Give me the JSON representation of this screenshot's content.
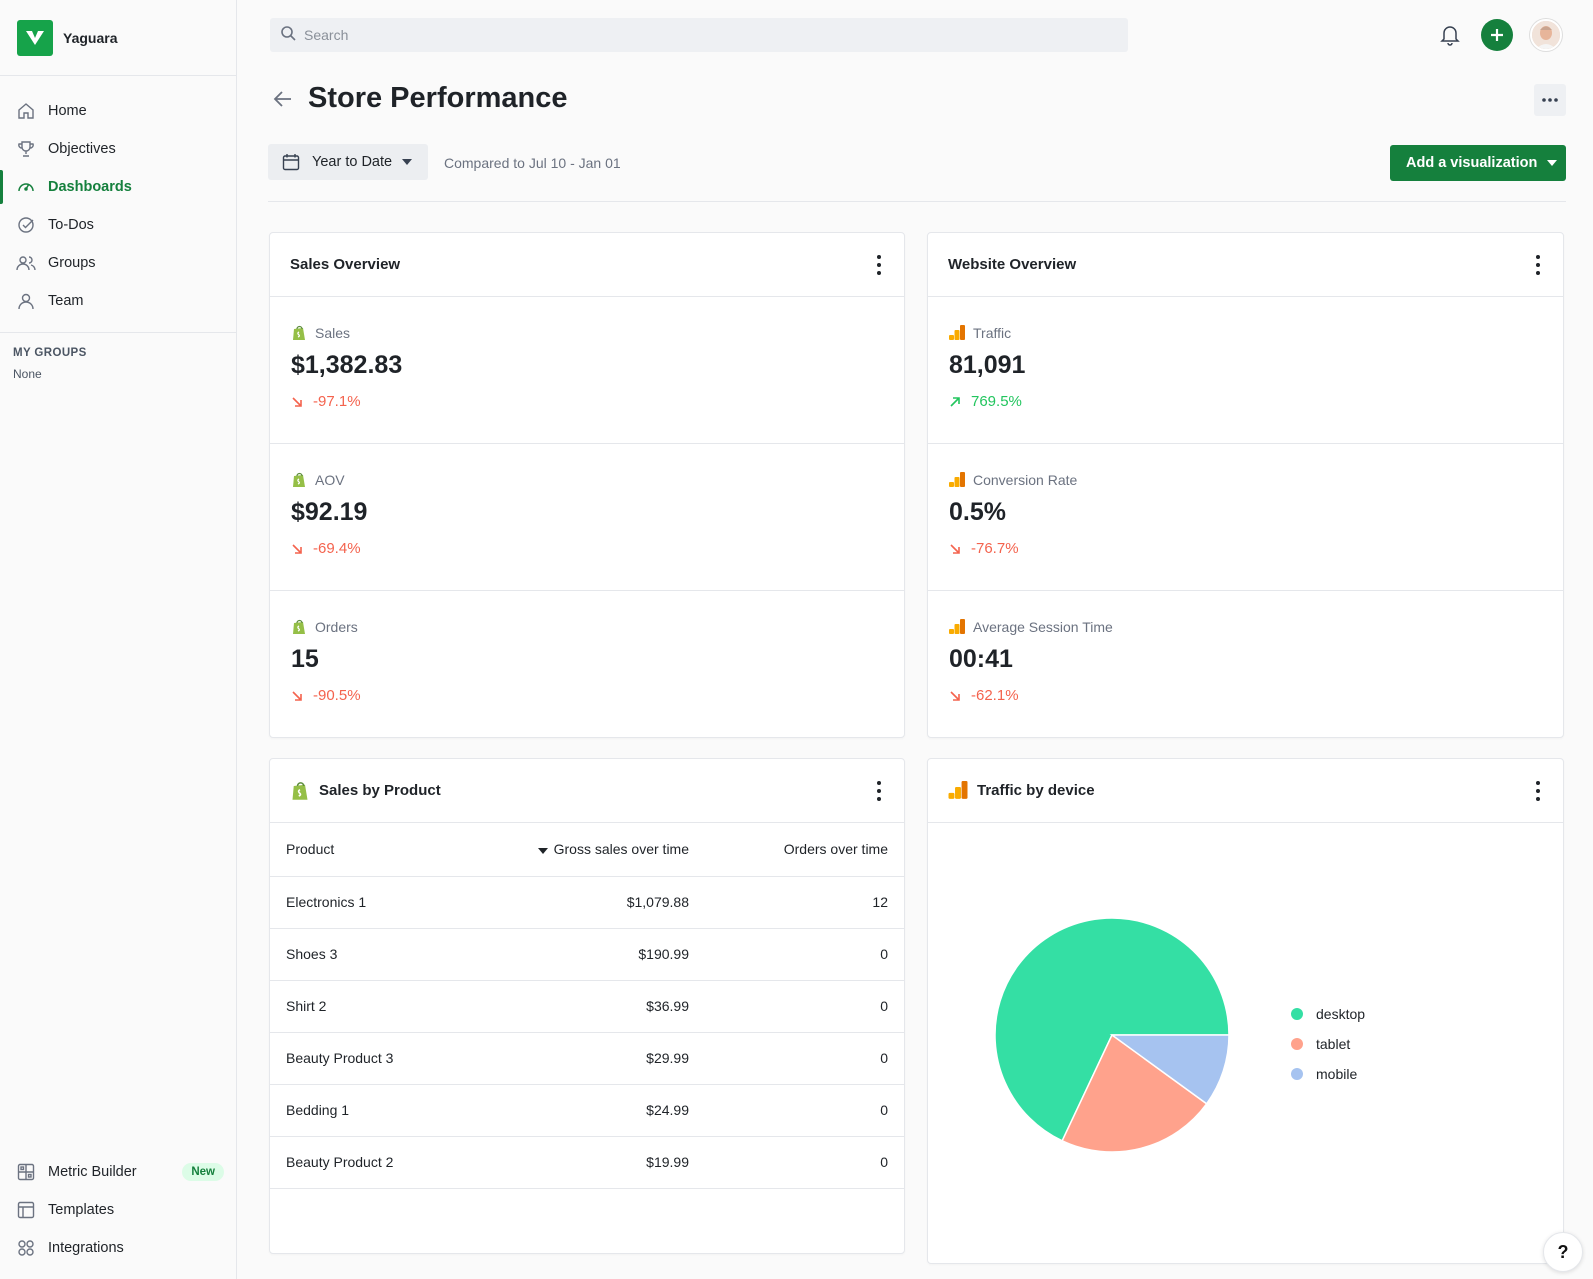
{
  "brand": {
    "name": "Yaguara"
  },
  "sidebar": {
    "items": [
      {
        "label": "Home",
        "icon": "home-icon"
      },
      {
        "label": "Objectives",
        "icon": "trophy-icon"
      },
      {
        "label": "Dashboards",
        "icon": "gauge-icon",
        "active": true
      },
      {
        "label": "To-Dos",
        "icon": "check-circle-icon"
      },
      {
        "label": "Groups",
        "icon": "users-icon"
      },
      {
        "label": "Team",
        "icon": "user-icon"
      }
    ],
    "groups_title": "MY GROUPS",
    "groups_none": "None",
    "bottom_items": [
      {
        "label": "Metric Builder",
        "icon": "grid-icon",
        "badge": "New"
      },
      {
        "label": "Templates",
        "icon": "layout-icon"
      },
      {
        "label": "Integrations",
        "icon": "apps-icon"
      }
    ]
  },
  "search": {
    "placeholder": "Search"
  },
  "header": {
    "title": "Store Performance",
    "date_range": "Year to Date",
    "compared": "Compared to Jul 10 - Jan 01",
    "add_visualization": "Add a visualization"
  },
  "sales_overview": {
    "title": "Sales Overview",
    "metrics": [
      {
        "label": "Sales",
        "value": "$1,382.83",
        "change": "-97.1%",
        "direction": "down"
      },
      {
        "label": "AOV",
        "value": "$92.19",
        "change": "-69.4%",
        "direction": "down"
      },
      {
        "label": "Orders",
        "value": "15",
        "change": "-90.5%",
        "direction": "down"
      }
    ]
  },
  "website_overview": {
    "title": "Website Overview",
    "metrics": [
      {
        "label": "Traffic",
        "value": "81,091",
        "change": "769.5%",
        "direction": "up"
      },
      {
        "label": "Conversion Rate",
        "value": "0.5%",
        "change": "-76.7%",
        "direction": "down"
      },
      {
        "label": "Average Session Time",
        "value": "00:41",
        "change": "-62.1%",
        "direction": "down"
      }
    ]
  },
  "sales_by_product": {
    "title": "Sales by Product",
    "columns": [
      "Product",
      "Gross sales over time",
      "Orders over time"
    ],
    "rows": [
      [
        "Electronics 1",
        "$1,079.88",
        "12"
      ],
      [
        "Shoes 3",
        "$190.99",
        "0"
      ],
      [
        "Shirt 2",
        "$36.99",
        "0"
      ],
      [
        "Beauty Product 3",
        "$29.99",
        "0"
      ],
      [
        "Bedding 1",
        "$24.99",
        "0"
      ],
      [
        "Beauty Product 2",
        "$19.99",
        "0"
      ]
    ]
  },
  "colors": {
    "accent": "#15803d",
    "negative": "#f4634e",
    "positive": "#22c55e",
    "desktop": "#34dfa4",
    "tablet": "#ffa28c",
    "mobile": "#a6c3f0"
  },
  "help": {
    "label": "?"
  },
  "chart_data": {
    "type": "pie",
    "title": "Traffic by device",
    "labels": [
      "desktop",
      "tablet",
      "mobile"
    ],
    "values": [
      68,
      22,
      10
    ],
    "colors": [
      "#34dfa4",
      "#ffa28c",
      "#a6c3f0"
    ],
    "legend": "right"
  }
}
